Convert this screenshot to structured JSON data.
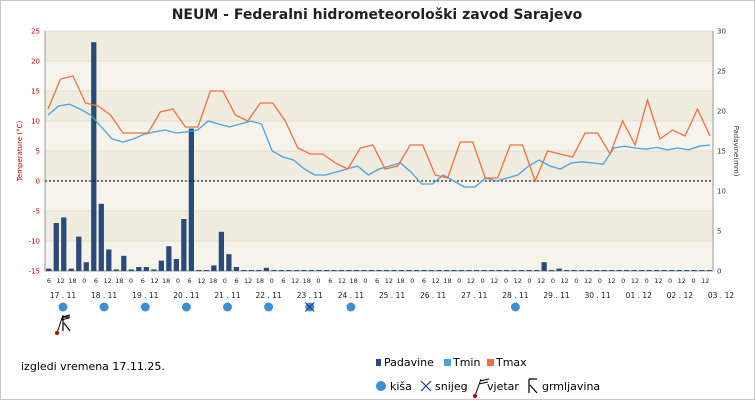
{
  "chart_data": {
    "type": "bar+line",
    "title": "NEUM - Federalni hidrometeorološki zavod Sarajevo",
    "y_left": {
      "label": "Temperature (°C)",
      "range": [
        -15,
        25
      ],
      "ticks": [
        "25",
        "20",
        "15",
        "10",
        "5",
        "0",
        "-5",
        "-10",
        "-15"
      ]
    },
    "y_right": {
      "label": "Padavine(mm)",
      "range": [
        0,
        30
      ],
      "ticks": [
        "30",
        "25",
        "20",
        "15",
        "10",
        "5",
        "0"
      ]
    },
    "x_hour_labels": [
      "6",
      "12",
      "18",
      "0",
      "6",
      "12",
      "18",
      "0",
      "6",
      "12",
      "18",
      "0",
      "6",
      "12",
      "18",
      "0",
      "6",
      "12",
      "18",
      "0",
      "6",
      "12",
      "18",
      "0",
      "6",
      "12",
      "18",
      "0",
      "6",
      "12",
      "18",
      "0",
      "6",
      "12",
      "18",
      "0",
      "12",
      "0",
      "12",
      "0",
      "12",
      "0",
      "12",
      "0",
      "12",
      "0",
      "12",
      "0",
      "12",
      "0",
      "12",
      "0",
      "12",
      "0",
      "12",
      "0",
      "12",
      "0"
    ],
    "x_date_labels": [
      "17 . 11",
      "18 . 11",
      "19 . 11",
      "20 . 11",
      "21 . 11",
      "22 . 11",
      "23 . 11",
      "24 . 11",
      "25 . 11",
      "26 . 11",
      "27 . 11",
      "28 . 11",
      "29 . 11",
      "30 . 11",
      "01 . 12",
      "02 . 12",
      "03 . 12"
    ],
    "padavine_mm": [
      0.3,
      6,
      6.7,
      0.3,
      4.3,
      1.1,
      28.6,
      8.4,
      2.7,
      0.2,
      1.9,
      0.2,
      0.5,
      0.5,
      0.2,
      1.3,
      3.1,
      1.5,
      6.5,
      17.8,
      0,
      0,
      0.7,
      4.9,
      2.1,
      0.5,
      0,
      0,
      0,
      0.4,
      0,
      0,
      0,
      0,
      0,
      0,
      0,
      0,
      0,
      0,
      0,
      0,
      0,
      0,
      0,
      0,
      0,
      0,
      0,
      0,
      0,
      0,
      0,
      0,
      0,
      0,
      0,
      0,
      0,
      0,
      0,
      0,
      0,
      0,
      0,
      0,
      1.1,
      0,
      0.3,
      0,
      0,
      0,
      0,
      0,
      0,
      0,
      0,
      0,
      0,
      0,
      0,
      0,
      0,
      0,
      0,
      0,
      0,
      0,
      0
    ],
    "tmin_C": [
      11,
      12.5,
      12.8,
      12,
      11,
      9,
      7,
      6.5,
      7,
      7.8,
      8.2,
      8.5,
      8,
      8.2,
      8.5,
      10,
      9.5,
      9,
      9.5,
      10,
      9.5,
      5,
      4,
      3.5,
      2,
      1,
      1,
      1.5,
      2,
      2.5,
      1,
      2,
      2.5,
      3,
      1.5,
      -0.5,
      -0.5,
      1,
      0,
      -1,
      -1,
      0.5,
      0,
      0.5,
      1,
      2.5,
      3.5,
      2.5,
      2,
      3,
      3.2,
      3,
      2.8,
      5.5,
      5.8,
      5.5,
      5.3,
      5.6,
      5.2,
      5.5,
      5.2,
      5.8,
      6
    ],
    "tmax_C": [
      12,
      17,
      17.5,
      13,
      12.5,
      11,
      8,
      8,
      8,
      11.5,
      12,
      9,
      9,
      15,
      15,
      11,
      10,
      13,
      13,
      10,
      5.5,
      4.5,
      4.5,
      3,
      2,
      5.5,
      6,
      2,
      2.5,
      6,
      6,
      1,
      0.5,
      6.5,
      6.5,
      0.5,
      0.5,
      6,
      6,
      0,
      5,
      4.5,
      4,
      8,
      8,
      4.5,
      10,
      6,
      13.5,
      7,
      8.5,
      7.5,
      12,
      7.5
    ],
    "legend": {
      "padavine": "Padavine",
      "tmin": "Tmin",
      "tmax": "Tmax"
    },
    "colors": {
      "bar": "#2a4a7a",
      "tmin": "#4aa3df",
      "tmax": "#f07040",
      "background": "#f5f3ea",
      "stripe": "#f0ecdf",
      "grid": "#e3ddcc"
    }
  },
  "footer": {
    "forecast_label": "izgledi vremena 17.11.25.",
    "legend_symbols": [
      {
        "icon": "rain-dot-icon",
        "label": "kiša"
      },
      {
        "icon": "snow-icon",
        "label": "snijeg"
      },
      {
        "icon": "wind-icon",
        "label": "vjetar"
      },
      {
        "icon": "thunderstorm-icon",
        "label": "grmljavina"
      }
    ]
  },
  "weather_symbols": [
    {
      "day": "17 . 11",
      "icons": [
        "rain-dot-icon",
        "wind-icon",
        "thunderstorm-icon"
      ]
    },
    {
      "day": "18 . 11",
      "icons": [
        "rain-dot-icon"
      ]
    },
    {
      "day": "19 . 11",
      "icons": [
        "rain-dot-icon"
      ]
    },
    {
      "day": "20 . 11",
      "icons": [
        "rain-dot-icon"
      ]
    },
    {
      "day": "21 . 11",
      "icons": [
        "rain-dot-icon"
      ]
    },
    {
      "day": "22 . 11",
      "icons": [
        "rain-dot-icon"
      ]
    },
    {
      "day": "23 . 11",
      "icons": [
        "rain-dot-icon",
        "snow-icon"
      ]
    },
    {
      "day": "24 . 11",
      "icons": [
        "rain-dot-icon"
      ]
    },
    {
      "day": "28 . 11",
      "icons": [
        "rain-dot-icon"
      ]
    }
  ]
}
